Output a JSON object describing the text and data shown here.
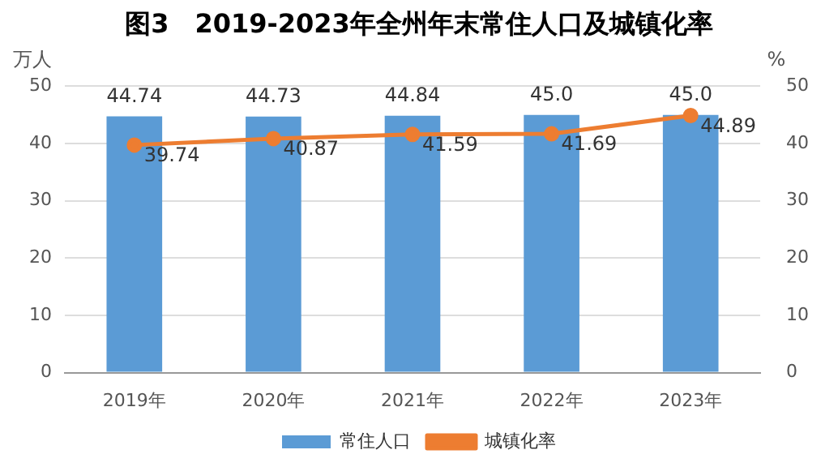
{
  "chart_data": {
    "type": "bar",
    "title": "图3　2019-2023年全州年末常住人口及城镇化率",
    "ylabel": "万人",
    "y2label": "%",
    "categories": [
      "2019年",
      "2020年",
      "2021年",
      "2022年",
      "2023年"
    ],
    "series": [
      {
        "name": "常住人口",
        "color": "#5b9bd5",
        "values": [
          44.74,
          44.73,
          44.84,
          45.0,
          45.0
        ],
        "value_labels": [
          "44.74",
          "44.73",
          "44.84",
          "45.0",
          "45.0"
        ]
      },
      {
        "name": "城镇化率",
        "type": "line",
        "axis": "y2",
        "color": "#ed7d31",
        "values": [
          39.74,
          40.87,
          41.59,
          41.69,
          44.89
        ],
        "value_labels": [
          "39.74",
          "40.87",
          "41.59",
          "41.69",
          "44.89"
        ]
      }
    ],
    "ylim": [
      0,
      50
    ],
    "yticks": [
      0,
      10,
      20,
      30,
      40,
      50
    ],
    "y2lim": [
      0,
      50
    ],
    "y2ticks": [
      0,
      10,
      20,
      30,
      40,
      50
    ],
    "grid": "y",
    "legend": "bottom",
    "marker": "circle",
    "line_style": "solid"
  }
}
